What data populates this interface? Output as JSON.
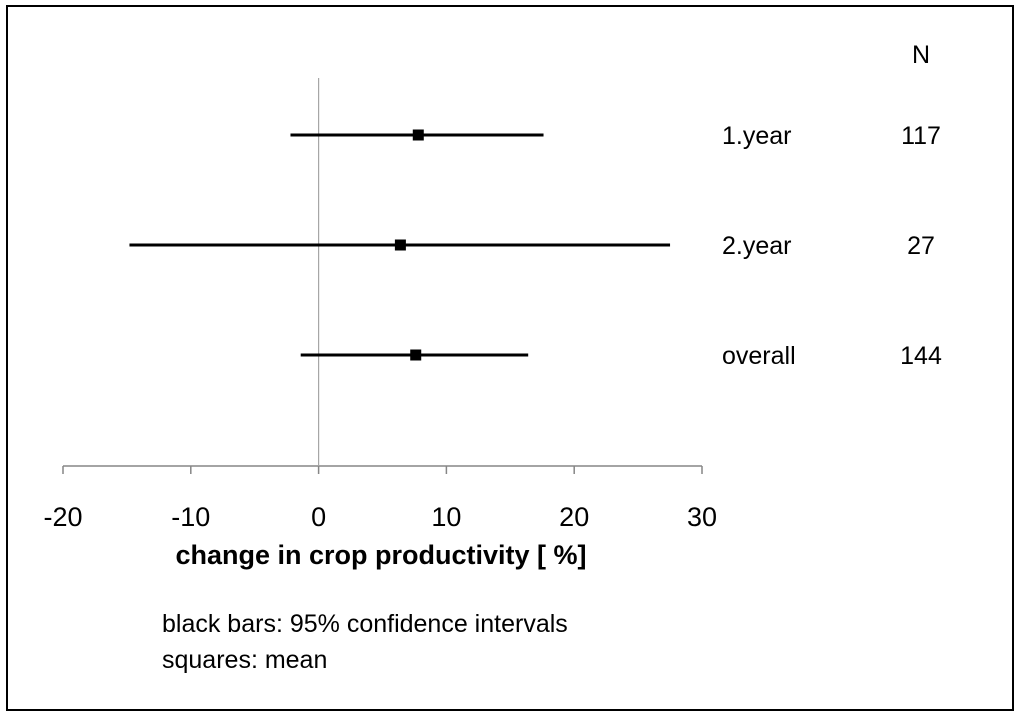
{
  "chart_data": {
    "type": "forest",
    "xlabel": "change in crop productivity [ %]",
    "xlim": [
      -20,
      30
    ],
    "xticks": [
      -20,
      -10,
      0,
      10,
      20,
      30
    ],
    "xtick_labels": [
      "-20",
      "-10",
      "0",
      "10",
      "20",
      "30"
    ],
    "column_header": "N",
    "rows": [
      {
        "label": "1.year",
        "mean": 7.8,
        "ci_low": -2.2,
        "ci_high": 17.6,
        "n": "117"
      },
      {
        "label": "2.year",
        "mean": 6.4,
        "ci_low": -14.8,
        "ci_high": 27.5,
        "n": "27"
      },
      {
        "label": "overall",
        "mean": 7.6,
        "ci_low": -1.4,
        "ci_high": 16.4,
        "n": "144"
      }
    ],
    "notes": [
      "black bars: 95% confidence intervals",
      "squares: mean"
    ],
    "colors": {
      "marks": "#000000",
      "zero_line": "#a6a6a6",
      "axis": "#868686"
    }
  }
}
